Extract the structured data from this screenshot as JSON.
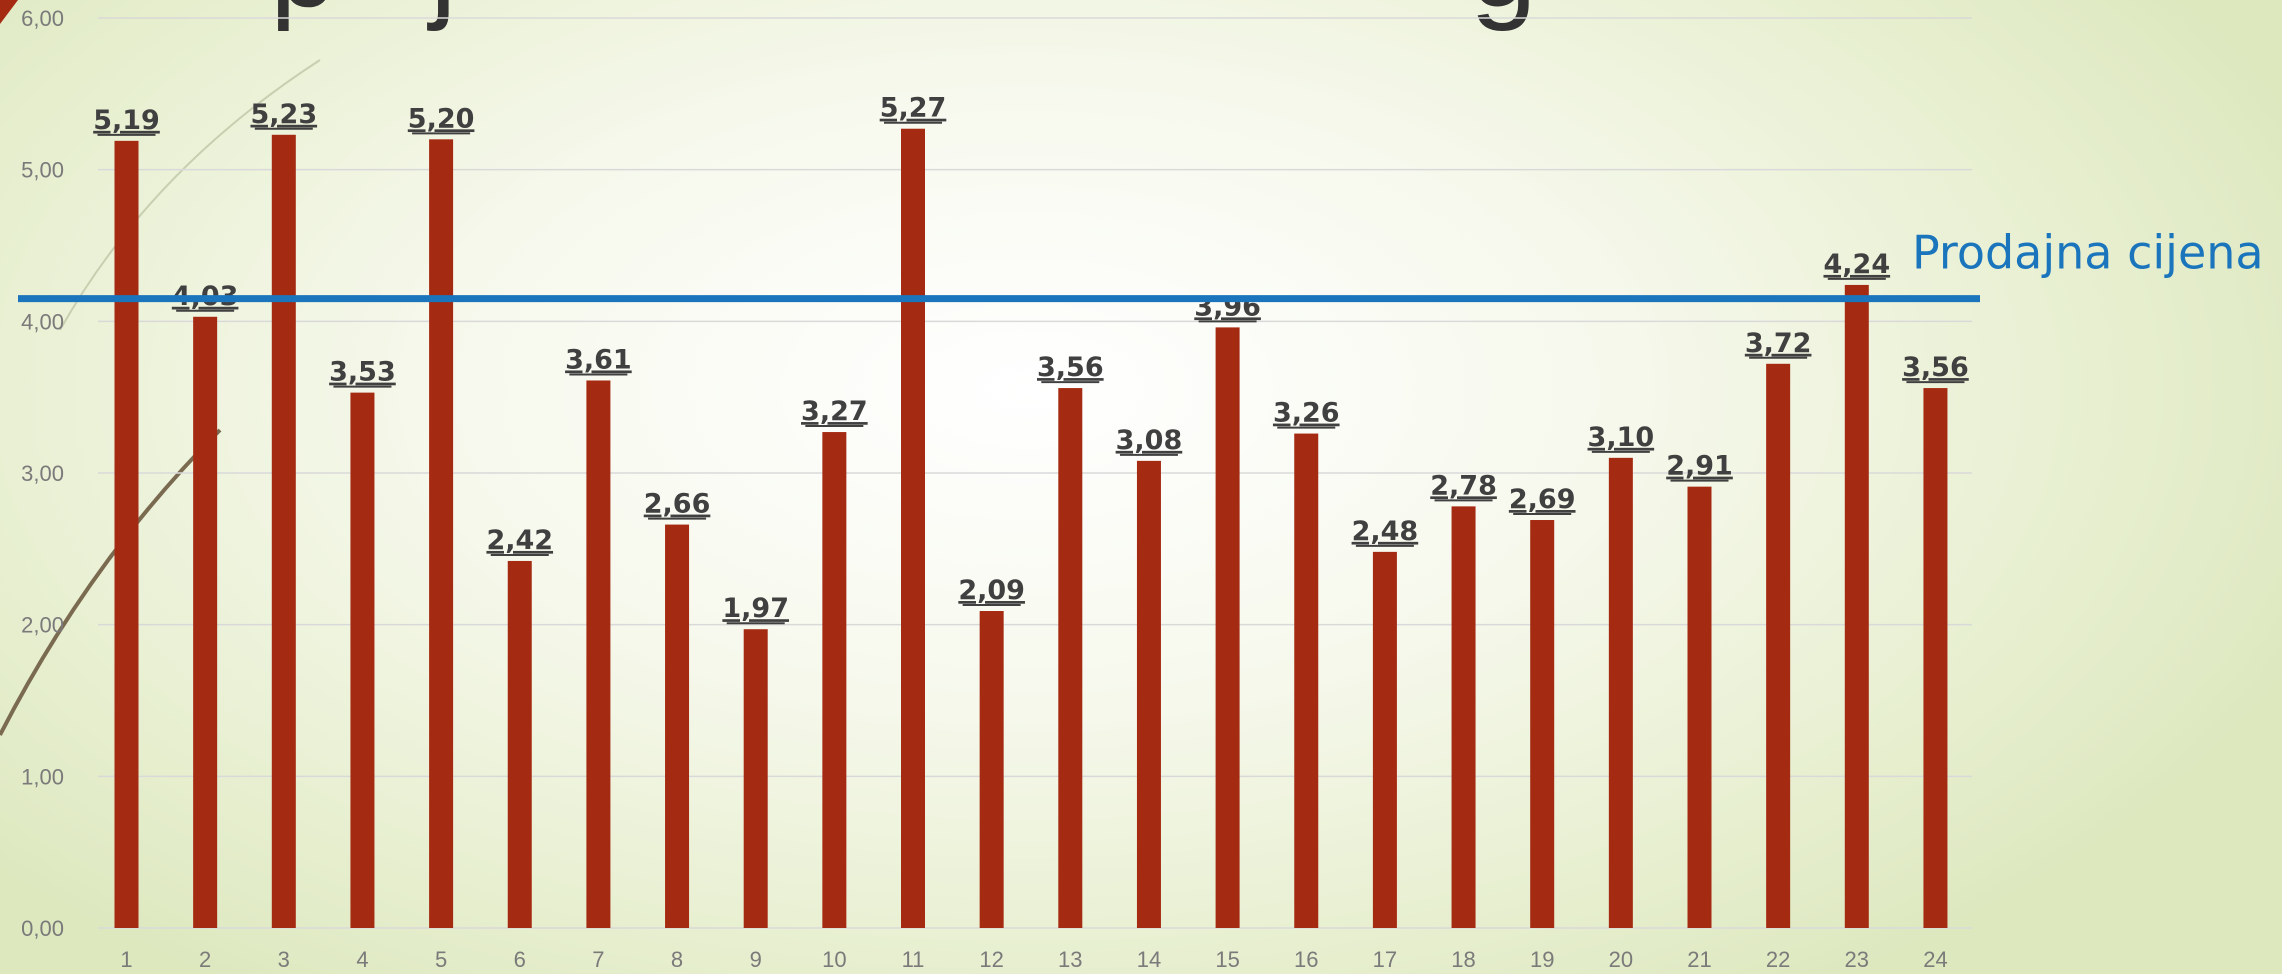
{
  "chart_data": {
    "type": "bar",
    "categories": [
      "1",
      "2",
      "3",
      "4",
      "5",
      "6",
      "7",
      "8",
      "9",
      "10",
      "11",
      "12",
      "13",
      "14",
      "15",
      "16",
      "17",
      "18",
      "19",
      "20",
      "21",
      "22",
      "23",
      "24"
    ],
    "values": [
      5.19,
      4.03,
      5.23,
      3.53,
      5.2,
      2.42,
      3.61,
      2.66,
      1.97,
      3.27,
      5.27,
      2.09,
      3.56,
      3.08,
      3.96,
      3.26,
      2.48,
      2.78,
      2.69,
      3.1,
      2.91,
      3.72,
      4.24,
      3.56
    ],
    "data_labels": [
      "5,19",
      "4,03",
      "5,23",
      "3,53",
      "5,20",
      "2,42",
      "3,61",
      "2,66",
      "1,97",
      "3,27",
      "5,27",
      "2,09",
      "3,56",
      "3,08",
      "3,96",
      "3,26",
      "2,48",
      "2,78",
      "2,69",
      "3,10",
      "2,91",
      "3,72",
      "4,24",
      "3,56"
    ],
    "y_ticks": [
      0,
      1,
      2,
      3,
      4,
      5,
      6
    ],
    "y_tick_labels": [
      "0,00",
      "1,00",
      "2,00",
      "3,00",
      "4,00",
      "5,00",
      "6,00"
    ],
    "ylim": [
      0,
      6
    ],
    "grid": true,
    "bar_color": "#a52a12",
    "reference_line": {
      "label": "Prodajna cijena",
      "value": 4.15,
      "color": "#1b75bc"
    },
    "title": "",
    "xlabel": "",
    "ylabel": ""
  }
}
